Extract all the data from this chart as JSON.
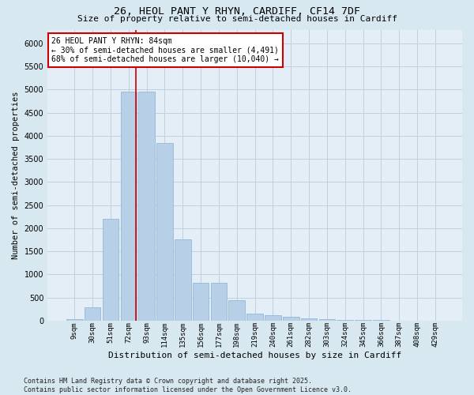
{
  "title_line1": "26, HEOL PANT Y RHYN, CARDIFF, CF14 7DF",
  "title_line2": "Size of property relative to semi-detached houses in Cardiff",
  "xlabel": "Distribution of semi-detached houses by size in Cardiff",
  "ylabel": "Number of semi-detached properties",
  "categories": [
    "9sqm",
    "30sqm",
    "51sqm",
    "72sqm",
    "93sqm",
    "114sqm",
    "135sqm",
    "156sqm",
    "177sqm",
    "198sqm",
    "219sqm",
    "240sqm",
    "261sqm",
    "282sqm",
    "303sqm",
    "324sqm",
    "345sqm",
    "366sqm",
    "387sqm",
    "408sqm",
    "429sqm"
  ],
  "values": [
    25,
    280,
    2200,
    4950,
    4950,
    3850,
    1750,
    820,
    820,
    440,
    155,
    115,
    75,
    55,
    28,
    18,
    8,
    6,
    4,
    2,
    1
  ],
  "bar_color": "#b8cfe8",
  "bar_edgecolor": "#8ab0d0",
  "vline_color": "#cc0000",
  "vline_pos": 3.42,
  "annotation_text": "26 HEOL PANT Y RHYN: 84sqm\n← 30% of semi-detached houses are smaller (4,491)\n68% of semi-detached houses are larger (10,040) →",
  "annotation_box_edgecolor": "#cc0000",
  "annotation_box_facecolor": "#ffffff",
  "ylim": [
    0,
    6300
  ],
  "yticks": [
    0,
    500,
    1000,
    1500,
    2000,
    2500,
    3000,
    3500,
    4000,
    4500,
    5000,
    5500,
    6000
  ],
  "grid_color": "#c0d0e0",
  "background_color": "#d8e8f0",
  "plot_bg_color": "#e4eef6",
  "footer_line1": "Contains HM Land Registry data © Crown copyright and database right 2025.",
  "footer_line2": "Contains public sector information licensed under the Open Government Licence v3.0."
}
